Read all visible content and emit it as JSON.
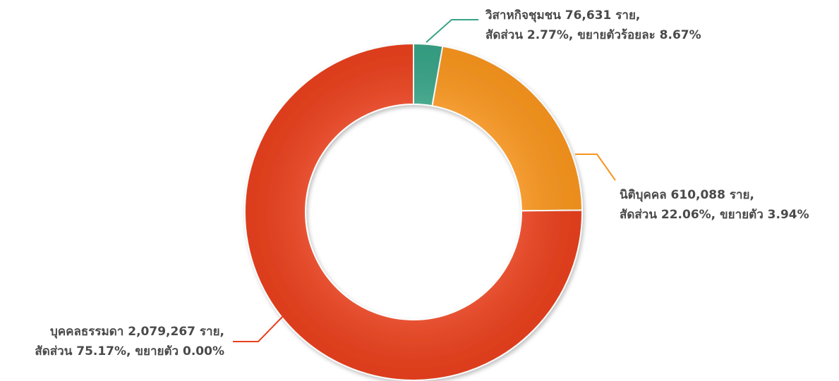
{
  "chart_data": {
    "type": "donut",
    "categories": [
      "วิสาหกิจชุมชน 76,631 ราย,",
      "นิติบุคคล 610,088 ราย,",
      "บุคคลธรรมดา 2,079,267 ราย,"
    ],
    "values": [
      2.77,
      22.06,
      75.17
    ],
    "value_labels": [
      "สัดส่วน 2.77%, ขยายตัวร้อยละ 8.67%",
      "สัดส่วน 22.06%, ขยายตัว 3.94%",
      "สัดส่วน 75.17%, ขยายตัว 0.00%"
    ],
    "colors": [
      "#36a386",
      "#f7941d",
      "#e8401c"
    ]
  }
}
